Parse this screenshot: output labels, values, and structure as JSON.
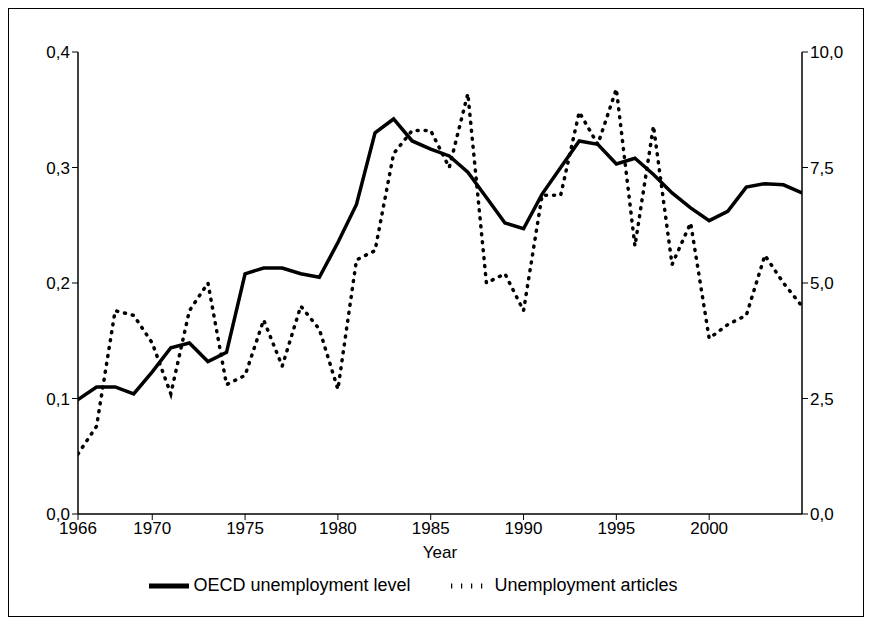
{
  "chart_data": {
    "type": "line",
    "x_label": "Year",
    "x": [
      1966,
      1967,
      1968,
      1969,
      1970,
      1971,
      1972,
      1973,
      1974,
      1975,
      1976,
      1977,
      1978,
      1979,
      1980,
      1981,
      1982,
      1983,
      1984,
      1985,
      1986,
      1987,
      1988,
      1989,
      1990,
      1991,
      1992,
      1993,
      1994,
      1995,
      1996,
      1997,
      1998,
      1999,
      2000,
      2001,
      2002,
      2003,
      2004,
      2005
    ],
    "xlim": [
      1966,
      2005
    ],
    "xticks": [
      1966,
      1970,
      1975,
      1980,
      1985,
      1990,
      1995,
      2000
    ],
    "ylim": [
      0,
      0.4
    ],
    "yticks": [
      {
        "value": 0,
        "label": "0,0"
      },
      {
        "value": 0.1,
        "label": "0,1"
      },
      {
        "value": 0.2,
        "label": "0,2"
      },
      {
        "value": 0.3,
        "label": "0,3"
      },
      {
        "value": 0.4,
        "label": "0,4"
      }
    ],
    "y2lim": [
      0,
      10
    ],
    "y2ticks": [
      {
        "value": 0,
        "label": "0,0"
      },
      {
        "value": 2.5,
        "label": "2,5"
      },
      {
        "value": 5,
        "label": "5,0"
      },
      {
        "value": 7.5,
        "label": "7,5"
      },
      {
        "value": 10,
        "label": "10,0"
      }
    ],
    "legend": "bottom",
    "grid": false,
    "series": [
      {
        "name": "OECD unemployment level",
        "color": "#000000",
        "line_style": "solid",
        "values": [
          0.099,
          0.11,
          0.11,
          0.104,
          0.123,
          0.144,
          0.148,
          0.132,
          0.14,
          0.208,
          0.213,
          0.213,
          0.208,
          0.205,
          0.235,
          0.268,
          0.33,
          0.342,
          0.323,
          0.316,
          0.31,
          0.296,
          0.274,
          0.252,
          0.247,
          0.277,
          0.3,
          0.323,
          0.32,
          0.303,
          0.308,
          0.294,
          0.278,
          0.265,
          0.254,
          0.262,
          0.283,
          0.286,
          0.285,
          0.278
        ]
      },
      {
        "name": "Unemployment articles",
        "color": "#000000",
        "line_style": "dotted",
        "axis": "y2",
        "values": [
          1.3,
          1.9,
          4.4,
          4.3,
          3.7,
          2.6,
          4.4,
          5.0,
          2.8,
          3.0,
          4.2,
          3.2,
          4.5,
          4.0,
          2.7,
          5.5,
          5.7,
          7.8,
          8.3,
          8.3,
          7.5,
          9.1,
          5.0,
          5.2,
          4.4,
          6.9,
          6.9,
          8.7,
          8.0,
          9.2,
          5.8,
          8.4,
          5.4,
          6.3,
          3.8,
          4.1,
          4.3,
          5.6,
          5.0,
          4.5
        ]
      }
    ]
  }
}
